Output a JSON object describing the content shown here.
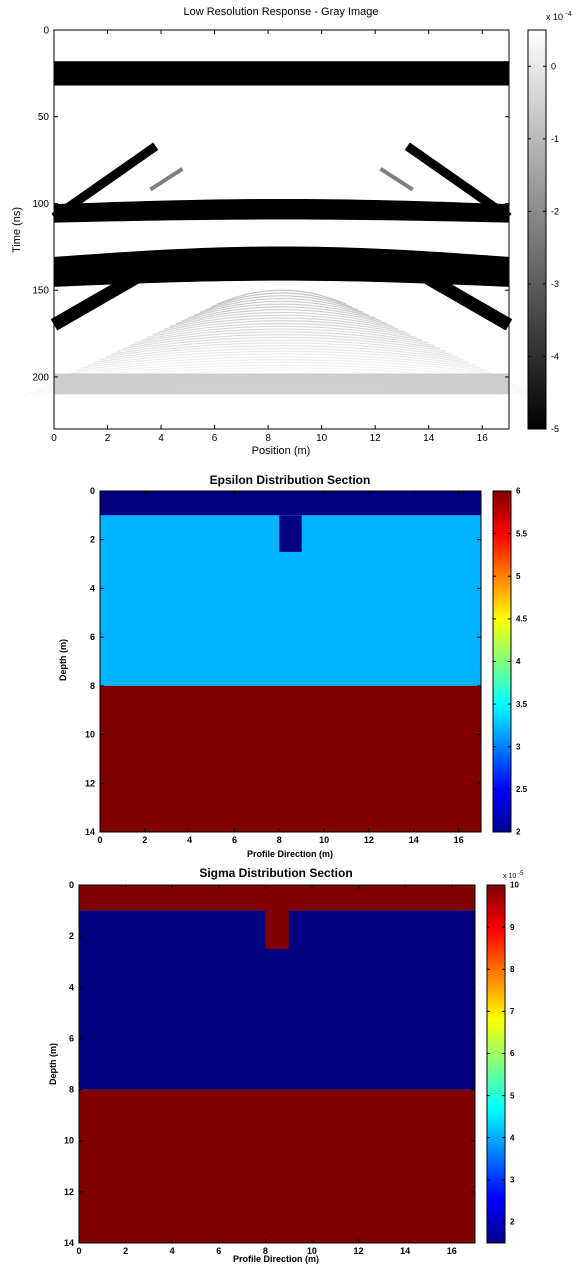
{
  "chart_data": [
    {
      "type": "heatmap",
      "title": "Low Resolution Response - Gray Image",
      "xlabel": "Position (m)",
      "ylabel": "Time (ns)",
      "xlim": [
        0,
        17
      ],
      "ylim": [
        0,
        230
      ],
      "y_reversed": true,
      "xticks": [
        0,
        2,
        4,
        6,
        8,
        10,
        12,
        14,
        16
      ],
      "yticks": [
        0,
        50,
        100,
        150,
        200
      ],
      "colormap": "gray",
      "colorbar": {
        "min": -5,
        "max": 0.5,
        "ticks": [
          0,
          -1,
          -2,
          -3,
          -4,
          -5
        ],
        "exponent_label": "x 10",
        "exponent": "-4"
      },
      "features": {
        "direct_wave_band": {
          "t_start": 18,
          "t_end": 32
        },
        "interface_band_1": {
          "t_center": 105,
          "thickness": 11
        },
        "interface_band_2": {
          "t_center": 138,
          "thickness": 18
        },
        "left_diffraction_lower": {
          "x": [
            0,
            4.5
          ],
          "t": [
            170,
            130
          ]
        },
        "left_diffraction_upper": {
          "x": [
            0,
            3.8
          ],
          "t": [
            108,
            67
          ]
        },
        "weak_band": {
          "t_start": 198,
          "t_end": 210
        }
      }
    },
    {
      "type": "heatmap",
      "title": "Epsilon Distribution Section",
      "xlabel": "Profile Direction (m)",
      "ylabel": "Depth (m)",
      "xlim": [
        0,
        17
      ],
      "ylim": [
        0,
        14
      ],
      "y_reversed": true,
      "xticks": [
        0,
        2,
        4,
        6,
        8,
        10,
        12,
        14,
        16
      ],
      "yticks": [
        0,
        2,
        4,
        6,
        8,
        10,
        12,
        14
      ],
      "colormap": "jet",
      "layers": [
        {
          "depth_top": 0,
          "depth_bottom": 1,
          "value": 2
        },
        {
          "depth_top": 1,
          "depth_bottom": 8,
          "value": 3.2
        },
        {
          "depth_top": 8,
          "depth_bottom": 14,
          "value": 6
        }
      ],
      "anomaly": {
        "x_start": 8,
        "x_end": 9,
        "depth_top": 1,
        "depth_bottom": 2.5,
        "value": 2
      },
      "colorbar": {
        "min": 2,
        "max": 6,
        "ticks": [
          2,
          2.5,
          3,
          3.5,
          4,
          4.5,
          5,
          5.5,
          6
        ],
        "tick_labels": [
          "2",
          "2.5",
          "3",
          "3.5",
          "4",
          "4.5",
          "5",
          "5.5",
          "6"
        ]
      }
    },
    {
      "type": "heatmap",
      "title": "Sigma Distribution Section",
      "xlabel": "Profile Direction (m)",
      "ylabel": "Depth (m)",
      "xlim": [
        0,
        17
      ],
      "ylim": [
        0,
        14
      ],
      "y_reversed": true,
      "xticks": [
        0,
        2,
        4,
        6,
        8,
        10,
        12,
        14,
        16
      ],
      "yticks": [
        0,
        2,
        4,
        6,
        8,
        10,
        12,
        14
      ],
      "colormap": "jet",
      "layers": [
        {
          "depth_top": 0,
          "depth_bottom": 1,
          "value": 10
        },
        {
          "depth_top": 1,
          "depth_bottom": 8,
          "value": 1.5
        },
        {
          "depth_top": 8,
          "depth_bottom": 14,
          "value": 10
        }
      ],
      "anomaly": {
        "x_start": 8,
        "x_end": 9,
        "depth_top": 1,
        "depth_bottom": 2.5,
        "value": 10
      },
      "colorbar": {
        "min": 1.5,
        "max": 10,
        "ticks": [
          2,
          3,
          4,
          5,
          6,
          7,
          8,
          9,
          10
        ],
        "tick_labels": [
          "2",
          "3",
          "4",
          "5",
          "6",
          "7",
          "8",
          "9",
          "10"
        ],
        "exponent_label": "x 10",
        "exponent": "-5"
      }
    }
  ]
}
